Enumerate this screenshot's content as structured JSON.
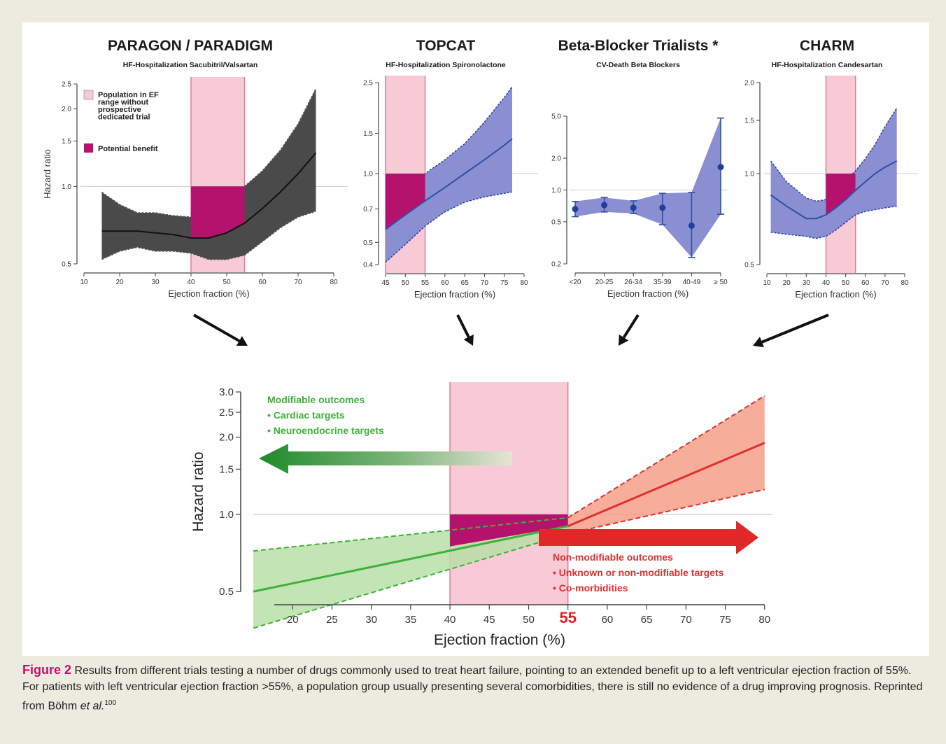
{
  "caption": {
    "label": "Figure 2",
    "text": "Results from different trials testing a number of drugs commonly used to treat heart failure, pointing to an extended benefit up to a left ventricular ejection fraction of 55%. For patients with left ventricular ejection fraction >55%, a population group usually presenting several comorbidities, there is still no evidence of a drug improving prognosis. Reprinted from Böhm ",
    "etal": "et al.",
    "ref": "100"
  },
  "legend": {
    "population": "Population in EF range without prospective dedicated trial",
    "population_lines": [
      "Population in EF",
      "range without",
      "prospective",
      "dedicated trial"
    ],
    "benefit": "Potential benefit"
  },
  "colors": {
    "pink_band": "#f7cad6",
    "pink_line": "#e07a98",
    "benefit": "#b5126d",
    "dark_band": "#4a4a4a",
    "blue_band": "#8a8fd1",
    "blue_line": "#2f4fa8",
    "green": "#3fb03a",
    "green_band": "#b8dfa8",
    "red": "#e03030",
    "red_band": "#f4a08a"
  },
  "chart_data": [
    {
      "id": "paragon",
      "type": "area",
      "title": "PARAGON / PARADIGM",
      "subtitle": "HF-Hospitalization Sacubitril/Valsartan",
      "xlabel": "Ejection fraction (%)",
      "ylabel": "Hazard ratio",
      "xlim": [
        10,
        80
      ],
      "ylim": [
        0.5,
        2.5
      ],
      "yscale": "log",
      "xticks": [
        "10",
        "20",
        "30",
        "40",
        "50",
        "60",
        "70",
        "80"
      ],
      "yticks": [
        "0.5",
        "1.0",
        "1.5",
        "2.0",
        "2.5"
      ],
      "shaded_ef": [
        40,
        55
      ],
      "x": [
        15,
        20,
        25,
        30,
        35,
        40,
        45,
        50,
        55,
        60,
        65,
        70,
        75
      ],
      "hr": [
        0.67,
        0.67,
        0.67,
        0.66,
        0.65,
        0.63,
        0.63,
        0.66,
        0.72,
        0.82,
        0.95,
        1.12,
        1.35
      ],
      "upper": [
        0.95,
        0.85,
        0.79,
        0.79,
        0.77,
        0.76,
        0.8,
        0.88,
        1.0,
        1.15,
        1.38,
        1.75,
        2.4
      ],
      "lower": [
        0.52,
        0.56,
        0.58,
        0.56,
        0.56,
        0.55,
        0.52,
        0.52,
        0.54,
        0.61,
        0.69,
        0.76,
        0.8
      ]
    },
    {
      "id": "topcat",
      "type": "area",
      "title": "TOPCAT",
      "subtitle": "HF-Hospitalization Spironolactone",
      "xlabel": "Ejection fraction (%)",
      "ylim": [
        0.4,
        2.5
      ],
      "yscale": "log",
      "xlim": [
        45,
        80
      ],
      "xticks": [
        "45",
        "50",
        "55",
        "60",
        "65",
        "70",
        "75",
        "80"
      ],
      "yticks": [
        "0.4",
        "0.5",
        "0.7",
        "1.0",
        "1.5",
        "2.5"
      ],
      "shaded_ef": [
        45,
        55
      ],
      "x": [
        45,
        50,
        55,
        60,
        65,
        70,
        75,
        77
      ],
      "hr": [
        0.57,
        0.66,
        0.76,
        0.87,
        1.0,
        1.15,
        1.33,
        1.42
      ],
      "upper": [
        0.84,
        0.89,
        1.0,
        1.15,
        1.35,
        1.68,
        2.15,
        2.4
      ],
      "lower": [
        0.41,
        0.49,
        0.59,
        0.68,
        0.75,
        0.79,
        0.82,
        0.83
      ]
    },
    {
      "id": "betablocker",
      "type": "scatter",
      "title": "Beta-Blocker Trialists *",
      "subtitle": "CV-Death Beta Blockers",
      "xlabel": "Ejection fraction (%)",
      "ylim": [
        0.2,
        5.0
      ],
      "yscale": "log",
      "categories": [
        "<20",
        "20-25",
        "26-34",
        "35-39",
        "40-49",
        "≥ 50"
      ],
      "yticks": [
        "0.2",
        "0.5",
        "1.0",
        "2.0",
        "5.0"
      ],
      "values": [
        0.66,
        0.72,
        0.68,
        0.68,
        0.46,
        1.65
      ],
      "ci_low": [
        0.56,
        0.62,
        0.6,
        0.47,
        0.23,
        0.59
      ],
      "ci_high": [
        0.78,
        0.85,
        0.79,
        0.93,
        0.95,
        4.8
      ]
    },
    {
      "id": "charm",
      "type": "area",
      "title": "CHARM",
      "subtitle": "HF-Hospitalization Candesartan",
      "xlabel": "Ejection fraction (%)",
      "xlim": [
        10,
        80
      ],
      "ylim": [
        0.5,
        2.0
      ],
      "yscale": "log",
      "xticks": [
        "10",
        "20",
        "30",
        "40",
        "50",
        "60",
        "70",
        "80"
      ],
      "yticks": [
        "0.5",
        "1.0",
        "1.5",
        "2.0"
      ],
      "shaded_ef": [
        40,
        55
      ],
      "x": [
        12,
        20,
        30,
        35,
        40,
        45,
        50,
        55,
        60,
        65,
        70,
        76
      ],
      "hr": [
        0.85,
        0.78,
        0.71,
        0.71,
        0.73,
        0.77,
        0.82,
        0.88,
        0.94,
        1.0,
        1.05,
        1.1
      ],
      "upper": [
        1.1,
        0.94,
        0.83,
        0.81,
        0.82,
        0.88,
        0.95,
        1.02,
        1.12,
        1.25,
        1.43,
        1.65
      ],
      "lower": [
        0.64,
        0.63,
        0.62,
        0.61,
        0.62,
        0.65,
        0.69,
        0.73,
        0.75,
        0.76,
        0.77,
        0.78
      ]
    },
    {
      "id": "summary",
      "type": "area",
      "xlabel": "Ejection fraction (%)",
      "ylabel": "Hazard ratio",
      "xlim": [
        15,
        81
      ],
      "ylim": [
        0.45,
        3.0
      ],
      "yscale": "log",
      "xticks": [
        "20",
        "25",
        "30",
        "35",
        "40",
        "45",
        "50",
        "55",
        "60",
        "65",
        "70",
        "75",
        "80"
      ],
      "yticks": [
        "0.5",
        "1.0",
        "1.5",
        "2.0",
        "2.5",
        "3.0"
      ],
      "highlight_tick": "55",
      "shaded_ef": [
        40,
        55
      ],
      "green": {
        "x": [
          15,
          55
        ],
        "hr": [
          0.5,
          0.9
        ],
        "upper": [
          0.72,
          0.97
        ],
        "lower": [
          0.36,
          0.84
        ]
      },
      "red": {
        "x": [
          55,
          80
        ],
        "hr": [
          0.9,
          1.9
        ],
        "upper": [
          0.97,
          2.9
        ],
        "lower": [
          0.84,
          1.25
        ]
      },
      "left_annotation": {
        "title": "Modifiable outcomes",
        "items": [
          "• Cardiac targets",
          "• Neuroendocrine targets"
        ]
      },
      "right_annotation": {
        "title": "Non-modifiable outcomes",
        "items": [
          "• Unknown or non-modifiable targets",
          "• Co-morbidities"
        ]
      }
    }
  ]
}
